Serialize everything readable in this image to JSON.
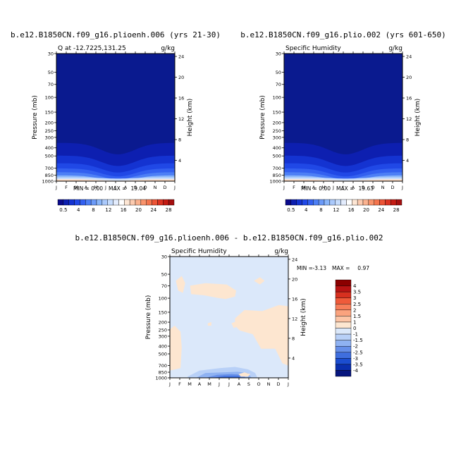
{
  "chart_data": [
    {
      "type": "heatmap",
      "title": "b.e12.B1850CN.f09_g16.plioenh.006 (yrs 21-30)",
      "subtitle_left": "Q at -12.7225,131.25",
      "units": "g/kg",
      "ylabel": "Pressure (mb)",
      "ylabel_right": "Height (km)",
      "x_ticks": [
        "J",
        "F",
        "M",
        "A",
        "M",
        "J",
        "J",
        "A",
        "S",
        "O",
        "N",
        "D",
        "J"
      ],
      "pressure_ticks": [
        "30",
        "50",
        "70",
        "100",
        "150",
        "200",
        "250",
        "300",
        "400",
        "500",
        "700",
        "850",
        "1000"
      ],
      "height_ticks": [
        "24",
        "20",
        "16",
        "12",
        "8",
        "4"
      ],
      "min_label": "MIN =",
      "min_value": "0.00",
      "max_label": "MAX =",
      "max_value": "19.04",
      "colorbar_labels": [
        "0.5",
        "4",
        "8",
        "12",
        "16",
        "20",
        "24",
        "28"
      ]
    },
    {
      "type": "heatmap",
      "title": "b.e12.B1850CN.f09_g16.plio.002 (yrs 601-650)",
      "subtitle_left": "Specific Humidity",
      "units": "g/kg",
      "ylabel": "Pressure (mb)",
      "ylabel_right": "Height (km)",
      "x_ticks": [
        "J",
        "F",
        "M",
        "A",
        "M",
        "J",
        "J",
        "A",
        "S",
        "O",
        "N",
        "D",
        "J"
      ],
      "pressure_ticks": [
        "30",
        "50",
        "70",
        "100",
        "150",
        "200",
        "250",
        "300",
        "400",
        "500",
        "700",
        "850",
        "1000"
      ],
      "height_ticks": [
        "24",
        "20",
        "16",
        "12",
        "8",
        "4"
      ],
      "min_label": "MIN =",
      "min_value": "0.00",
      "max_label": "MAX =",
      "max_value": "19.63",
      "colorbar_labels": [
        "0.5",
        "4",
        "8",
        "12",
        "16",
        "20",
        "24",
        "28"
      ]
    },
    {
      "type": "heatmap",
      "title": "b.e12.B1850CN.f09_g16.plioenh.006 - b.e12.B1850CN.f09_g16.plio.002",
      "subtitle_left": "Specific Humidity",
      "units": "g/kg",
      "ylabel": "Pressure (mb)",
      "ylabel_right": "Height (km)",
      "x_ticks": [
        "J",
        "F",
        "M",
        "A",
        "M",
        "J",
        "J",
        "A",
        "S",
        "O",
        "N",
        "D",
        "J"
      ],
      "pressure_ticks": [
        "30",
        "50",
        "70",
        "100",
        "150",
        "200",
        "250",
        "300",
        "400",
        "500",
        "700",
        "850",
        "1000"
      ],
      "height_ticks": [
        "24",
        "20",
        "16",
        "12",
        "8",
        "4"
      ],
      "min_label": "MIN =",
      "min_value": "-3.13",
      "max_label": "MAX =",
      "max_value": "0.97",
      "colorbar_labels": [
        "4",
        "3.5",
        "3",
        "2.5",
        "2",
        "1.5",
        "1",
        "0",
        "-1",
        "-1.5",
        "-2",
        "-2.5",
        "-3",
        "-3.5",
        "-4"
      ]
    }
  ],
  "colors": {
    "main_colorbar": [
      "#0a0a8c",
      "#0d1fb0",
      "#1433d1",
      "#2048e6",
      "#3360f0",
      "#4d7ff5",
      "#6b9af8",
      "#8ab6fa",
      "#aac9fb",
      "#c6dcfc",
      "#e3ecfd",
      "#ffffff",
      "#fde6d4",
      "#fccbb0",
      "#fbb28f",
      "#f9946c",
      "#f4754e",
      "#ec5436",
      "#dc3322",
      "#c41b13",
      "#a50f0f"
    ],
    "diff_colorbar": [
      "#8b0000",
      "#b81313",
      "#d7301f",
      "#ef5a3a",
      "#f77e5a",
      "#fba37e",
      "#fdc5a6",
      "#fde6d0",
      "#dbe8fa",
      "#b8d0f7",
      "#8fb2f2",
      "#668fe9",
      "#3f6ede",
      "#1b4dd0",
      "#0a2fae",
      "#06157e"
    ],
    "deep_blue": "#0a1a8f",
    "diff_background": "#dbe8fa",
    "diff_positive": "#fde6d0"
  }
}
